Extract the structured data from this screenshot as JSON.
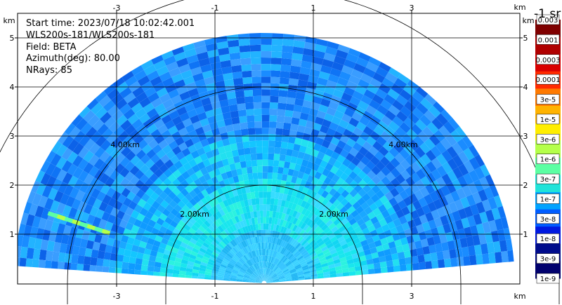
{
  "info": {
    "start_time": "Start time: 2023/07/18 10:02:42.001",
    "instrument": "WLS200s-181/WLS200s-181",
    "field": "Field: BETA",
    "azimuth": "Azimuth(deg): 80.00",
    "nrays": "NRays: 85"
  },
  "axes": {
    "x_unit": "km",
    "y_unit": "km",
    "x_range": [
      -3.9,
      5.5
    ],
    "y_range": [
      0,
      5.4
    ],
    "x_ticks": [
      -3,
      -1,
      1,
      3
    ],
    "x_tick_labels": [
      "-3",
      "-1",
      "1",
      "3"
    ],
    "y_ticks": [
      1,
      2,
      3,
      4,
      5
    ],
    "y_tick_labels": [
      "1",
      "2",
      "3",
      "4",
      "5"
    ],
    "grid": true
  },
  "range_rings": [
    {
      "radius_km": 2,
      "label": "2.00km"
    },
    {
      "radius_km": 4,
      "label": "4.00km"
    },
    {
      "radius_km": 6,
      "label": ""
    }
  ],
  "scan": {
    "type": "RHI half-fan",
    "max_range_km": 5.1,
    "angle_min_deg": 5,
    "angle_max_deg": 176
  },
  "colorbar": {
    "title": "-1 sr",
    "labels": [
      "0.003",
      "0.001",
      "0.0003",
      "0.0001",
      "3e-5",
      "1e-5",
      "3e-6",
      "1e-6",
      "3e-7",
      "1e-7",
      "3e-8",
      "1e-8",
      "3e-9",
      "1e-9"
    ],
    "colors": [
      "#7f0000",
      "#b00000",
      "#d90000",
      "#ff2a00",
      "#ff7a00",
      "#ffb300",
      "#ffee00",
      "#b5ff4a",
      "#5cffa3",
      "#21e3d9",
      "#00a3ff",
      "#005cff",
      "#0019e0",
      "#000c8c",
      "#00006e"
    ]
  }
}
